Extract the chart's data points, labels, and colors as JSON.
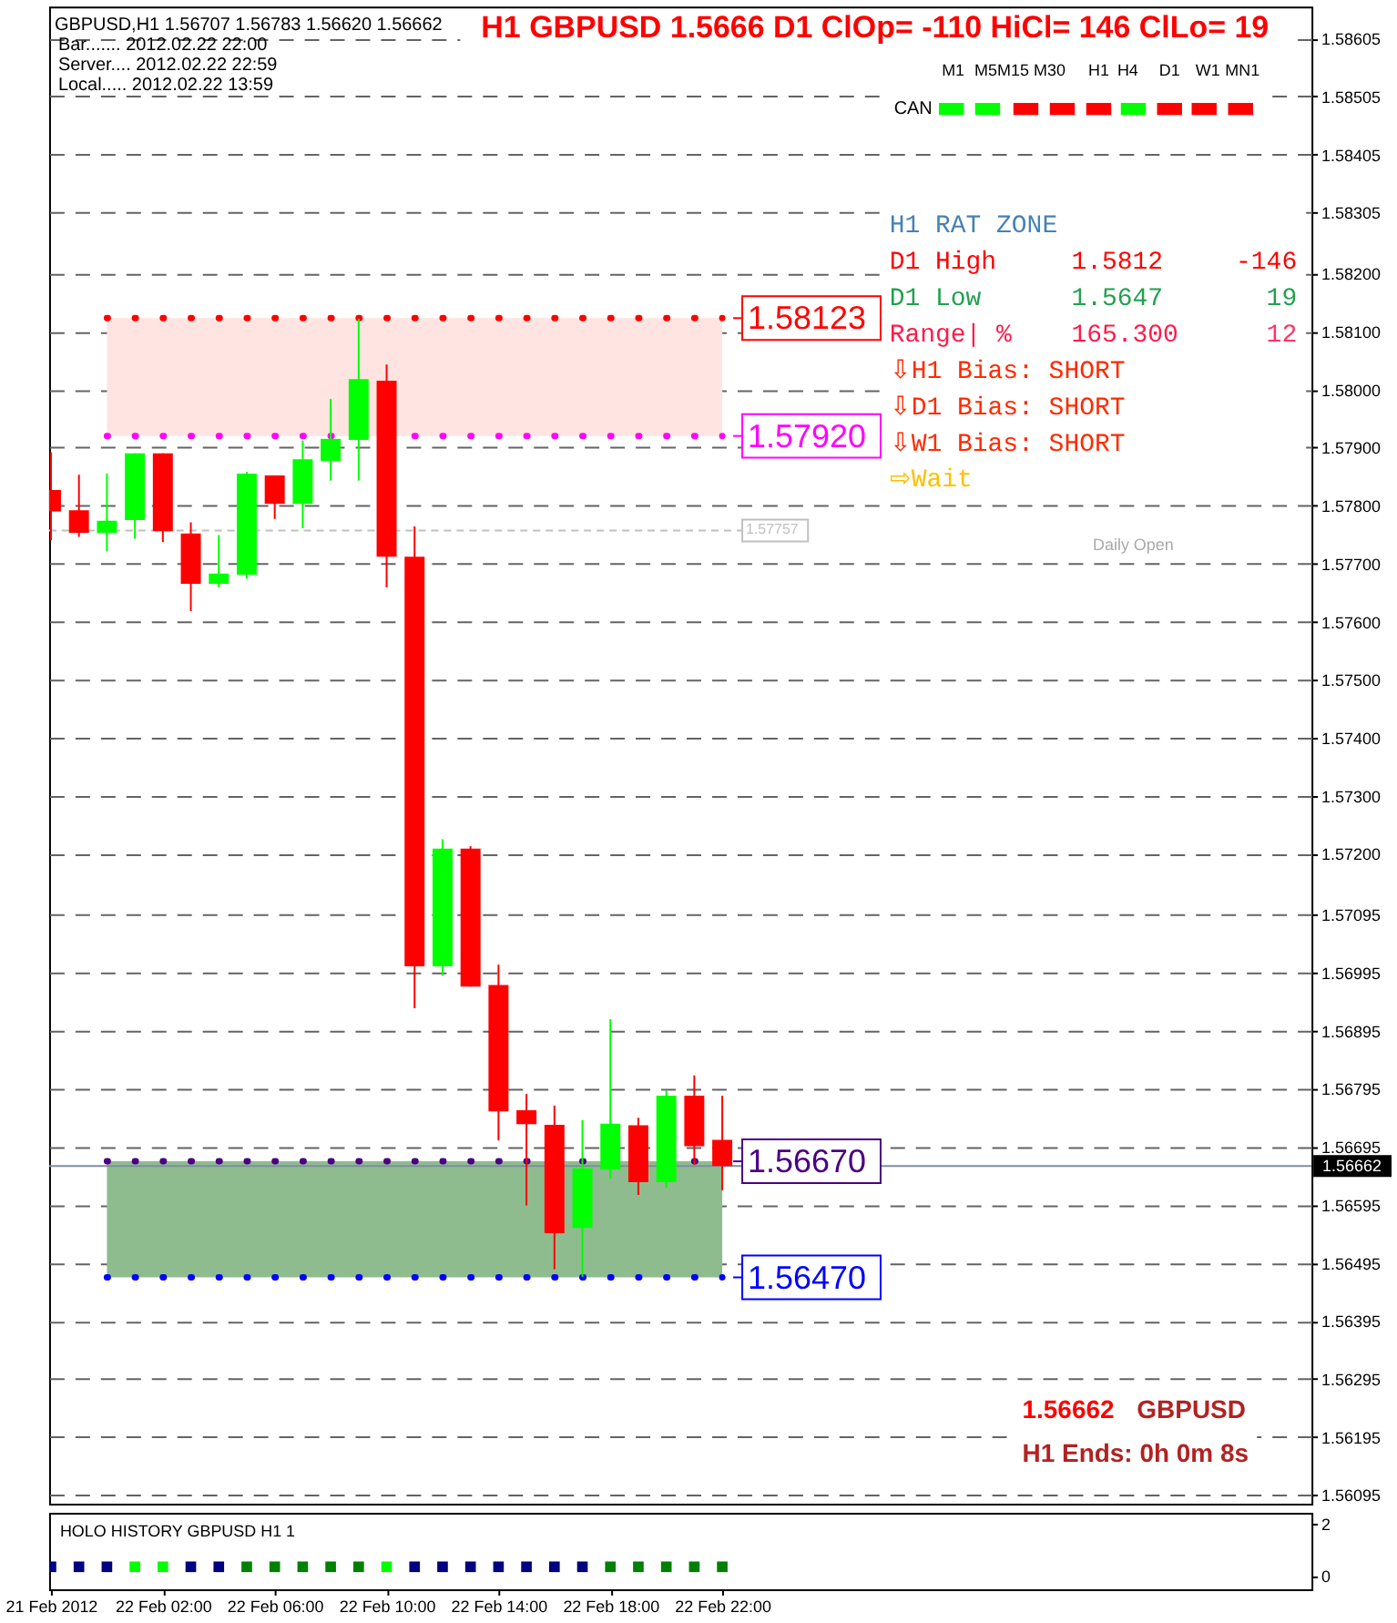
{
  "chart_data": [
    {
      "type": "candlestick",
      "title": "H1 GBPUSD 1.5666 D1 ClOp= -110 HiCl= 146 ClLo= 19",
      "x": [
        "2012-02-21T22:00",
        "2012-02-21T23:00",
        "2012-02-22T00:00",
        "2012-02-22T01:00",
        "2012-02-22T02:00",
        "2012-02-22T03:00",
        "2012-02-22T04:00",
        "2012-02-22T05:00",
        "2012-02-22T06:00",
        "2012-02-22T07:00",
        "2012-02-22T08:00",
        "2012-02-22T09:00",
        "2012-02-22T10:00",
        "2012-02-22T11:00",
        "2012-02-22T12:00",
        "2012-02-22T13:00",
        "2012-02-22T14:00",
        "2012-02-22T15:00",
        "2012-02-22T16:00",
        "2012-02-22T17:00",
        "2012-02-22T18:00",
        "2012-02-22T19:00",
        "2012-02-22T20:00",
        "2012-02-22T21:00",
        "2012-02-22T22:00"
      ],
      "ohlc": [
        [
          1.57827,
          1.57892,
          1.5774,
          1.5779
        ],
        [
          1.57792,
          1.57853,
          1.57746,
          1.57753
        ],
        [
          1.57753,
          1.57855,
          1.57721,
          1.57774
        ],
        [
          1.57775,
          1.5789,
          1.57743,
          1.5789
        ],
        [
          1.5789,
          1.5789,
          1.57737,
          1.57756
        ],
        [
          1.57752,
          1.57771,
          1.57618,
          1.57665
        ],
        [
          1.57665,
          1.57749,
          1.57659,
          1.57683
        ],
        [
          1.57681,
          1.57858,
          1.57674,
          1.57855
        ],
        [
          1.57852,
          1.57852,
          1.57777,
          1.57803
        ],
        [
          1.57803,
          1.57912,
          1.57761,
          1.5788
        ],
        [
          1.57877,
          1.57984,
          1.57843,
          1.57915
        ],
        [
          1.57913,
          1.58122,
          1.57843,
          1.58018
        ],
        [
          1.58015,
          1.58043,
          1.57659,
          1.57712
        ],
        [
          1.57712,
          1.57764,
          1.56934,
          1.57006
        ],
        [
          1.57006,
          1.57225,
          1.5699,
          1.57209
        ],
        [
          1.57209,
          1.57213,
          1.56971,
          1.56971
        ],
        [
          1.56974,
          1.57009,
          1.56706,
          1.56756
        ],
        [
          1.56758,
          1.56786,
          1.56594,
          1.56734
        ],
        [
          1.56733,
          1.56766,
          1.56484,
          1.56546
        ],
        [
          1.56555,
          1.56741,
          1.56471,
          1.56658
        ],
        [
          1.56656,
          1.56915,
          1.5664,
          1.56735
        ],
        [
          1.56732,
          1.56745,
          1.56612,
          1.56634
        ],
        [
          1.56634,
          1.56792,
          1.56624,
          1.56783
        ],
        [
          1.56783,
          1.56818,
          1.56664,
          1.56696
        ],
        [
          1.56707,
          1.56783,
          1.5662,
          1.56662
        ]
      ],
      "colors": [
        "#ff0000",
        "#ff0000",
        "#00ff00",
        "#00ff00",
        "#ff0000",
        "#ff0000",
        "#00ff00",
        "#00ff00",
        "#ff0000",
        "#00ff00",
        "#00ff00",
        "#00ff00",
        "#ff0000",
        "#ff0000",
        "#00ff00",
        "#ff0000",
        "#ff0000",
        "#ff0000",
        "#ff0000",
        "#00ff00",
        "#00ff00",
        "#ff0000",
        "#00ff00",
        "#ff0000",
        "#ff0000"
      ],
      "xlim": [
        "2012-02-21T21:56",
        "2012-02-23T19:04"
      ],
      "ylim": [
        1.5608,
        1.5866
      ],
      "yticks": [
        1.58605,
        1.58505,
        1.58405,
        1.58305,
        {
          "value": 1.582,
          "label": "1.58200"
        },
        {
          "value": 1.581,
          "label": "1.58100"
        },
        {
          "value": 1.58,
          "label": "1.58000"
        },
        {
          "value": 1.579,
          "label": "1.57900"
        },
        {
          "value": 1.578,
          "label": "1.57800"
        },
        {
          "value": 1.577,
          "label": "1.57700"
        },
        {
          "value": 1.576,
          "label": "1.57600"
        },
        {
          "value": 1.575,
          "label": "1.57500"
        },
        {
          "value": 1.574,
          "label": "1.57400"
        },
        {
          "value": 1.573,
          "label": "1.57300"
        },
        {
          "value": 1.572,
          "label": "1.57200"
        },
        1.57095,
        1.56995,
        1.56895,
        1.56795,
        1.56695,
        1.56595,
        1.56495,
        1.56395,
        1.56295,
        1.56195,
        1.56095
      ],
      "tick_labels": "y",
      "grid": "y",
      "bands": [
        {
          "axis": "y",
          "from": 1.5792,
          "to": 1.58123,
          "color": "#ffe4e1"
        },
        {
          "axis": "y",
          "from": 1.5647,
          "to": 1.5667,
          "color": "#8fbc8f"
        }
      ],
      "ref_lines": [
        {
          "axis": "y",
          "value": 1.56662,
          "label": "1.56662",
          "color": "#7f8ca0",
          "line_style": "solid"
        },
        {
          "axis": "y",
          "value": 1.57757,
          "label": "1.57757",
          "color": "#c0c0c0",
          "line_style": "dashed"
        },
        {
          "axis": "y",
          "value": 1.58123,
          "label": "1.58123",
          "color": "#ff0000",
          "line_style": "dotted"
        },
        {
          "axis": "y",
          "value": 1.5792,
          "label": "1.57920",
          "color": "#ff00ff",
          "line_style": "dotted"
        },
        {
          "axis": "y",
          "value": 1.5667,
          "label": "1.56670",
          "color": "#4b0082",
          "line_style": "dotted"
        },
        {
          "axis": "y",
          "value": 1.5647,
          "label": "1.56470",
          "color": "#0000ff",
          "line_style": "dotted"
        }
      ],
      "annotations": [
        "GBPUSD,H1 1.56707 1.56783 1.56620 1.56662",
        "Bar....... 2012.02.22 22:00",
        "Server.... 2012.02.22 22:59",
        "Local..... 2012.02.22 13:59",
        "M1",
        "M5",
        "M15",
        "M30",
        "H1",
        "H4",
        "D1",
        "W1",
        "MN1",
        "CAN",
        "▬",
        "▬",
        "▬",
        "▬",
        "▬",
        "▬",
        "▬",
        "▬",
        "▬",
        "H1 RAT ZONE",
        "D1 High",
        "1.5812",
        "-146",
        "D1 Low",
        "1.5647",
        "19",
        "Range| %",
        "165.300",
        "12",
        "⇩H1 Bias: SHORT",
        "⇩D1 Bias: SHORT",
        "⇩W1 Bias: SHORT",
        "⇨Wait",
        "Daily Open",
        "1.56662",
        "GBPUSD",
        "H1 Ends: 0h 0m 8s"
      ]
    },
    {
      "type": "scatter",
      "title": "HOLO HISTORY GBPUSD H1 1",
      "x": [
        "2012-02-21T22:00",
        "2012-02-21T23:00",
        "2012-02-22T00:00",
        "2012-02-22T01:00",
        "2012-02-22T02:00",
        "2012-02-22T03:00",
        "2012-02-22T04:00",
        "2012-02-22T05:00",
        "2012-02-22T06:00",
        "2012-02-22T07:00",
        "2012-02-22T08:00",
        "2012-02-22T09:00",
        "2012-02-22T10:00",
        "2012-02-22T11:00",
        "2012-02-22T12:00",
        "2012-02-22T13:00",
        "2012-02-22T14:00",
        "2012-02-22T15:00",
        "2012-02-22T16:00",
        "2012-02-22T17:00",
        "2012-02-22T18:00",
        "2012-02-22T19:00",
        "2012-02-22T20:00",
        "2012-02-22T21:00",
        "2012-02-22T22:00"
      ],
      "values": [
        0.35,
        0.35,
        0.35,
        0.35,
        0.35,
        0.35,
        0.35,
        0.35,
        0.35,
        0.35,
        0.35,
        0.35,
        0.35,
        0.35,
        0.35,
        0.35,
        0.35,
        0.35,
        0.35,
        0.35,
        0.35,
        0.35,
        0.35,
        0.35,
        0.35
      ],
      "colors": [
        "#000080",
        "#000080",
        "#000080",
        "#00ff00",
        "#00ff00",
        "#000080",
        "#000080",
        "#008000",
        "#008000",
        "#008000",
        "#008000",
        "#008000",
        "#00ff00",
        "#000080",
        "#000080",
        "#000080",
        "#000080",
        "#000080",
        "#000080",
        "#000080",
        "#008000",
        "#008000",
        "#008000",
        "#008000",
        "#008000"
      ],
      "marker": "square",
      "xlim": [
        "2012-02-21T21:56",
        "2012-02-23T19:04"
      ],
      "xticks": [
        {
          "value": "2012-02-21T22:00",
          "label": "21 Feb 2012"
        },
        {
          "value": "2012-02-22T02:00",
          "label": "22 Feb 02:00"
        },
        {
          "value": "2012-02-22T06:00",
          "label": "22 Feb 06:00"
        },
        {
          "value": "2012-02-22T10:00",
          "label": "22 Feb 10:00"
        },
        {
          "value": "2012-02-22T14:00",
          "label": "22 Feb 14:00"
        },
        {
          "value": "2012-02-22T18:00",
          "label": "22 Feb 18:00"
        },
        {
          "value": "2012-02-22T22:00",
          "label": "22 Feb 22:00"
        }
      ],
      "ylim": [
        -0.5,
        2.4
      ],
      "yticks": [
        0,
        2
      ]
    }
  ]
}
